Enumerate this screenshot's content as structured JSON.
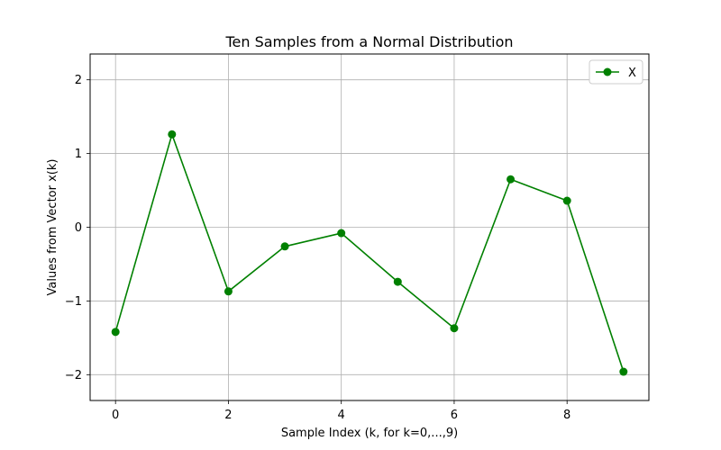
{
  "chart_data": {
    "type": "line",
    "title": "Ten Samples from a Normal Distribution",
    "xlabel": "Sample Index (k, for k=0,...,9)",
    "ylabel": "Values from Vector x(k)",
    "xlim": [
      -0.45,
      9.45
    ],
    "ylim": [
      -2.35,
      2.35
    ],
    "xticks": [
      0,
      2,
      4,
      6,
      8
    ],
    "yticks": [
      -2,
      -1,
      0,
      1,
      2
    ],
    "xtick_labels": [
      "0",
      "2",
      "4",
      "6",
      "8"
    ],
    "ytick_labels": [
      "−2",
      "−1",
      "0",
      "1",
      "2"
    ],
    "grid": true,
    "legend_position": "top-right",
    "series": [
      {
        "name": "X",
        "color": "#008000",
        "marker": "circle",
        "x": [
          0,
          1,
          2,
          3,
          4,
          5,
          6,
          7,
          8,
          9
        ],
        "y": [
          -1.42,
          1.26,
          -0.87,
          -0.26,
          -0.08,
          -0.74,
          -1.37,
          0.65,
          0.36,
          -1.96
        ]
      }
    ]
  }
}
